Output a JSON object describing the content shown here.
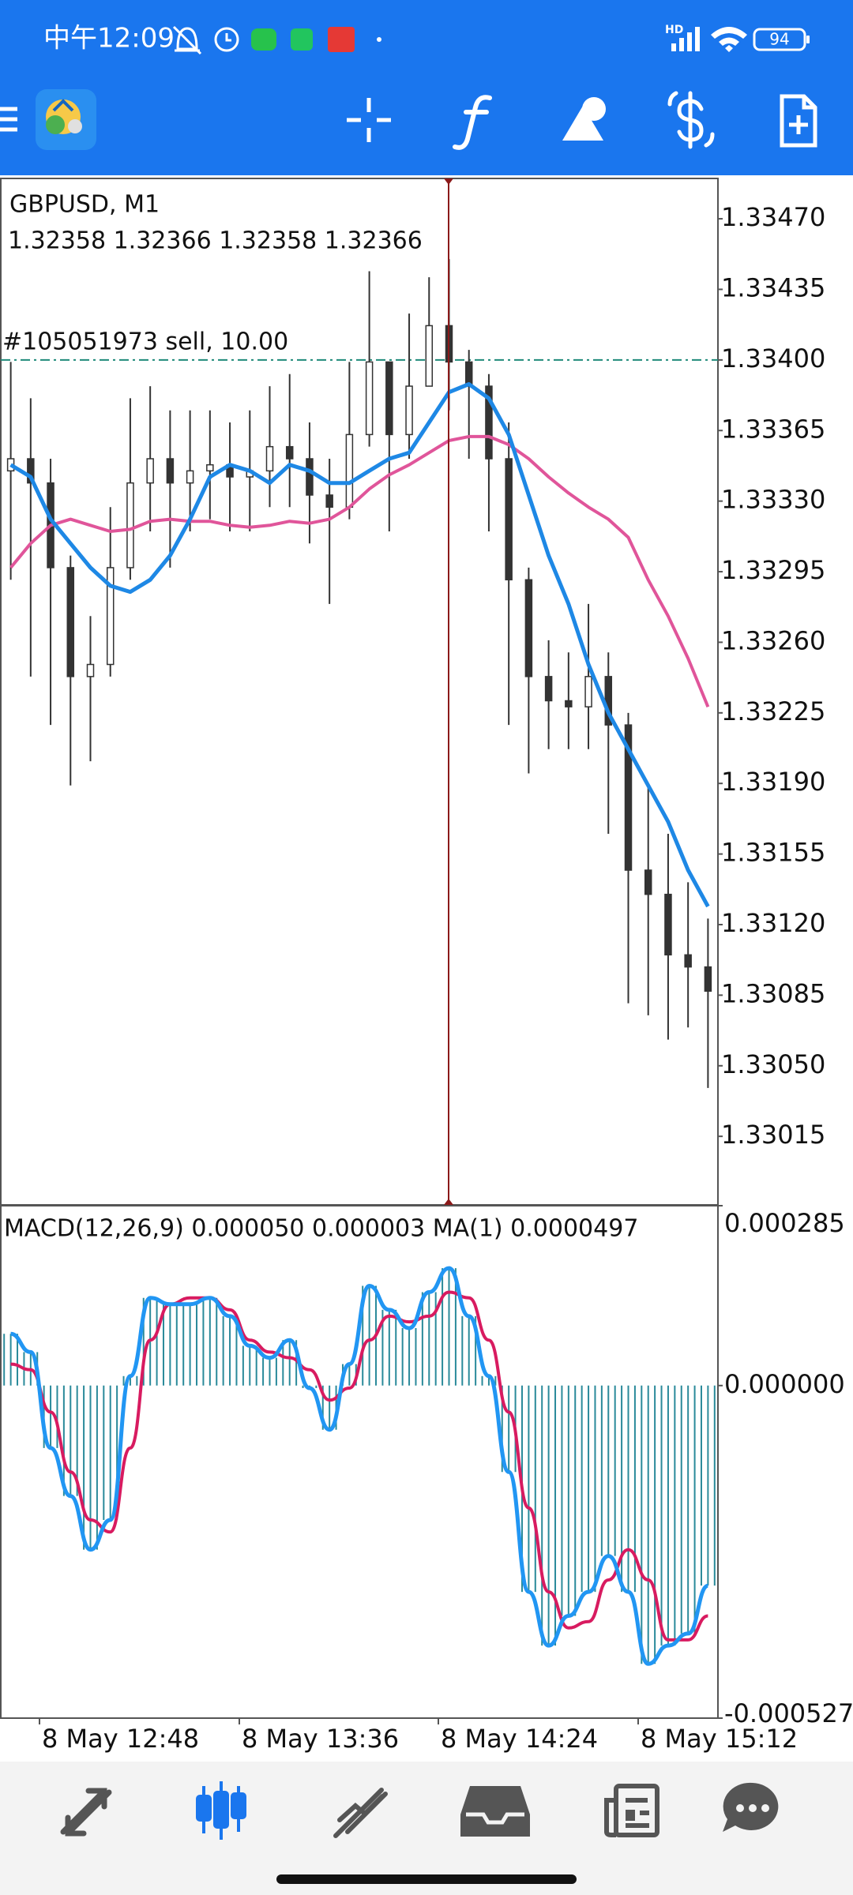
{
  "status_bar": {
    "time": "中午12:09",
    "network": "HD",
    "battery": "94"
  },
  "chart": {
    "symbol": "GBPUSD, M1",
    "ohlc": "1.32358 1.32366 1.32358 1.32366",
    "trade_label": "#105051973 sell, 10.00",
    "trade_price": 1.334,
    "ylim": [
      1.32981,
      1.3349
    ],
    "yticks": [
      {
        "value": 1.3347,
        "label": "1.33470"
      },
      {
        "value": 1.33435,
        "label": "1.33435"
      },
      {
        "value": 1.334,
        "label": "1.33400"
      },
      {
        "value": 1.33365,
        "label": "1.33365"
      },
      {
        "value": 1.3333,
        "label": "1.33330"
      },
      {
        "value": 1.33295,
        "label": "1.33295"
      },
      {
        "value": 1.3326,
        "label": "1.33260"
      },
      {
        "value": 1.33225,
        "label": "1.33225"
      },
      {
        "value": 1.3319,
        "label": "1.33190"
      },
      {
        "value": 1.33155,
        "label": "1.33155"
      },
      {
        "value": 1.3312,
        "label": "1.33120"
      },
      {
        "value": 1.33085,
        "label": "1.33085"
      },
      {
        "value": 1.3305,
        "label": "1.33050"
      },
      {
        "value": 1.33015,
        "label": "1.33015"
      }
    ],
    "candles": [
      {
        "o": 1.33345,
        "h": 1.33399,
        "l": 1.33291,
        "c": 1.33351
      },
      {
        "o": 1.33351,
        "h": 1.33381,
        "l": 1.33243,
        "c": 1.33339
      },
      {
        "o": 1.33339,
        "h": 1.33351,
        "l": 1.33219,
        "c": 1.33297
      },
      {
        "o": 1.33297,
        "h": 1.33303,
        "l": 1.33189,
        "c": 1.33243
      },
      {
        "o": 1.33243,
        "h": 1.33273,
        "l": 1.33201,
        "c": 1.33249
      },
      {
        "o": 1.33249,
        "h": 1.33327,
        "l": 1.33243,
        "c": 1.33297
      },
      {
        "o": 1.33297,
        "h": 1.33381,
        "l": 1.33291,
        "c": 1.33339
      },
      {
        "o": 1.33339,
        "h": 1.33387,
        "l": 1.33315,
        "c": 1.33351
      },
      {
        "o": 1.33351,
        "h": 1.33375,
        "l": 1.33297,
        "c": 1.33339
      },
      {
        "o": 1.33339,
        "h": 1.33375,
        "l": 1.33315,
        "c": 1.33345
      },
      {
        "o": 1.33345,
        "h": 1.33375,
        "l": 1.33321,
        "c": 1.33348
      },
      {
        "o": 1.33348,
        "h": 1.33369,
        "l": 1.33315,
        "c": 1.33342
      },
      {
        "o": 1.33342,
        "h": 1.33375,
        "l": 1.33315,
        "c": 1.33345
      },
      {
        "o": 1.33345,
        "h": 1.33387,
        "l": 1.33327,
        "c": 1.33357
      },
      {
        "o": 1.33357,
        "h": 1.33393,
        "l": 1.33327,
        "c": 1.33351
      },
      {
        "o": 1.33351,
        "h": 1.33369,
        "l": 1.33309,
        "c": 1.33333
      },
      {
        "o": 1.33333,
        "h": 1.33351,
        "l": 1.33279,
        "c": 1.33327
      },
      {
        "o": 1.33327,
        "h": 1.33399,
        "l": 1.33321,
        "c": 1.33363
      },
      {
        "o": 1.33363,
        "h": 1.33444,
        "l": 1.33357,
        "c": 1.33399
      },
      {
        "o": 1.33399,
        "h": 1.33399,
        "l": 1.33315,
        "c": 1.33363
      },
      {
        "o": 1.33363,
        "h": 1.33423,
        "l": 1.33351,
        "c": 1.33387
      },
      {
        "o": 1.33387,
        "h": 1.33441,
        "l": 1.33387,
        "c": 1.33417
      },
      {
        "o": 1.33417,
        "h": 1.3345,
        "l": 1.33375,
        "c": 1.33399
      },
      {
        "o": 1.33399,
        "h": 1.33405,
        "l": 1.33351,
        "c": 1.33387
      },
      {
        "o": 1.33387,
        "h": 1.33393,
        "l": 1.33315,
        "c": 1.33351
      },
      {
        "o": 1.33351,
        "h": 1.33369,
        "l": 1.33219,
        "c": 1.33291
      },
      {
        "o": 1.33291,
        "h": 1.33297,
        "l": 1.33195,
        "c": 1.33243
      },
      {
        "o": 1.33243,
        "h": 1.33261,
        "l": 1.33207,
        "c": 1.33231
      },
      {
        "o": 1.33231,
        "h": 1.33255,
        "l": 1.33207,
        "c": 1.33228
      },
      {
        "o": 1.33228,
        "h": 1.33279,
        "l": 1.33207,
        "c": 1.33243
      },
      {
        "o": 1.33243,
        "h": 1.33255,
        "l": 1.33165,
        "c": 1.33219
      },
      {
        "o": 1.33219,
        "h": 1.33225,
        "l": 1.33081,
        "c": 1.33147
      },
      {
        "o": 1.33147,
        "h": 1.33189,
        "l": 1.33075,
        "c": 1.33135
      },
      {
        "o": 1.33135,
        "h": 1.33165,
        "l": 1.33063,
        "c": 1.33105
      },
      {
        "o": 1.33105,
        "h": 1.33141,
        "l": 1.33069,
        "c": 1.33099
      },
      {
        "o": 1.33099,
        "h": 1.33123,
        "l": 1.33039,
        "c": 1.33087
      }
    ],
    "ma_fast": {
      "color": "#1e88e5",
      "values": [
        1.33348,
        1.33342,
        1.33321,
        1.33309,
        1.33297,
        1.33288,
        1.33285,
        1.33291,
        1.33303,
        1.33321,
        1.33342,
        1.33348,
        1.33345,
        1.33339,
        1.33348,
        1.33345,
        1.33339,
        1.33339,
        1.33345,
        1.33351,
        1.33354,
        1.33369,
        1.33384,
        1.33388,
        1.33381,
        1.33363,
        1.33333,
        1.33303,
        1.33279,
        1.33249,
        1.33225,
        1.33207,
        1.33189,
        1.33171,
        1.33147,
        1.33129
      ]
    },
    "ma_slow": {
      "color": "#e0559a",
      "values": [
        1.33297,
        1.33309,
        1.33318,
        1.33321,
        1.33318,
        1.33315,
        1.33316,
        1.3332,
        1.33321,
        1.3332,
        1.3332,
        1.33318,
        1.33317,
        1.33318,
        1.3332,
        1.33319,
        1.33321,
        1.33327,
        1.33336,
        1.33343,
        1.33348,
        1.33354,
        1.3336,
        1.33362,
        1.33362,
        1.33358,
        1.33351,
        1.33342,
        1.33334,
        1.33327,
        1.33321,
        1.33312,
        1.33291,
        1.33273,
        1.33252,
        1.33228
      ]
    }
  },
  "macd": {
    "label": "MACD(12,26,9) 0.000050 0.000003 MA(1) 0.0000497",
    "ylim": [
      -0.000527,
      0.000285
    ],
    "yticks": [
      {
        "value": 0.000285,
        "label": "0.000285"
      },
      {
        "value": 0,
        "label": "0.000000"
      },
      {
        "value": -0.000527,
        "label": "-0.000527"
      }
    ],
    "main": {
      "color": "#2196f3",
      "values": [
        8.2e-05,
        5.3e-05,
        -9.9e-05,
        -0.000175,
        -0.00026,
        -0.000213,
        1.5e-05,
        0.000139,
        0.000129,
        0.000129,
        0.000139,
        0.00011,
        6.3e-05,
        4.4e-05,
        7.2e-05,
        -4e-06,
        -7e-05,
        3.4e-05,
        0.000158,
        0.00012,
        9.1e-05,
        0.000148,
        0.000186,
        0.00011,
        1.5e-05,
        -0.000137,
        -0.000327,
        -0.000412,
        -0.000365,
        -0.000327,
        -0.00027,
        -0.000327,
        -0.000441,
        -0.000412,
        -0.000393,
        -0.000317
      ]
    },
    "signal": {
      "color": "#d81b60",
      "values": [
        3.4e-05,
        2.5e-05,
        -4.2e-05,
        -0.000137,
        -0.000213,
        -0.000232,
        -9.9e-05,
        7.2e-05,
        0.000129,
        0.000139,
        0.000139,
        0.00012,
        7.2e-05,
        5.3e-05,
        4.4e-05,
        2.5e-05,
        -2.3e-05,
        -4e-06,
        7.2e-05,
        0.00011,
        0.000101,
        0.00011,
        0.000148,
        0.000139,
        7.2e-05,
        -4.2e-05,
        -0.000194,
        -0.000327,
        -0.000384,
        -0.000374,
        -0.000308,
        -0.00026,
        -0.000308,
        -0.000403,
        -0.000403,
        -0.000365
      ]
    },
    "histogram_color": "#2a8a9a"
  },
  "time_axis": [
    "8 May 12:48",
    "8 May 13:36",
    "8 May 14:24",
    "8 May 15:12"
  ]
}
